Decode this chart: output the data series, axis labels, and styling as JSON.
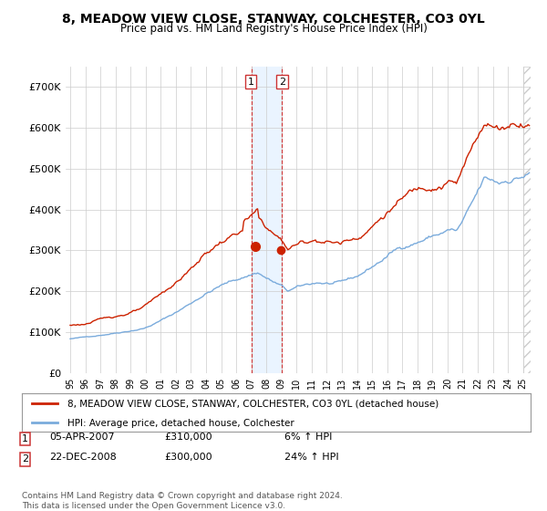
{
  "title": "8, MEADOW VIEW CLOSE, STANWAY, COLCHESTER, CO3 0YL",
  "subtitle": "Price paid vs. HM Land Registry's House Price Index (HPI)",
  "legend_line1": "8, MEADOW VIEW CLOSE, STANWAY, COLCHESTER, CO3 0YL (detached house)",
  "legend_line2": "HPI: Average price, detached house, Colchester",
  "transaction1_date": "05-APR-2007",
  "transaction1_price": "£310,000",
  "transaction1_hpi": "6% ↑ HPI",
  "transaction2_date": "22-DEC-2008",
  "transaction2_price": "£300,000",
  "transaction2_hpi": "24% ↑ HPI",
  "footer": "Contains HM Land Registry data © Crown copyright and database right 2024.\nThis data is licensed under the Open Government Licence v3.0.",
  "hpi_color": "#7aabdc",
  "price_color": "#cc2200",
  "marker_color": "#cc2200",
  "highlight_fill": "#ddeeff",
  "highlight_line": "#cc3333",
  "background_color": "#ffffff",
  "grid_color": "#cccccc",
  "ylim": [
    0,
    750000
  ],
  "xlim_start": 1995.0,
  "xlim_end": 2025.5,
  "transaction1_x": 2007.25,
  "transaction1_y": 310000,
  "transaction2_x": 2008.97,
  "transaction2_y": 300000,
  "highlight_x1": 2007.0,
  "highlight_x2": 2009.0,
  "yticks": [
    0,
    100000,
    200000,
    300000,
    400000,
    500000,
    600000,
    700000
  ],
  "ytick_labels": [
    "£0",
    "£100K",
    "£200K",
    "£300K",
    "£400K",
    "£500K",
    "£600K",
    "£700K"
  ]
}
